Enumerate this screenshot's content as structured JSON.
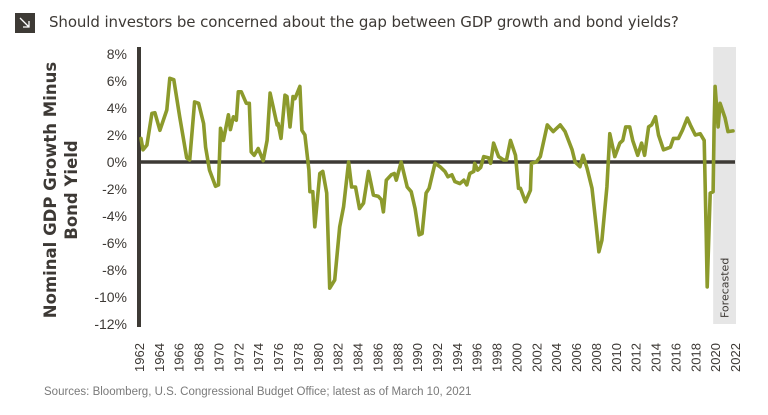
{
  "header": {
    "title": "Should investors be concerned about the gap between GDP growth and bond yields?",
    "icon": "arrow-down-right-icon"
  },
  "source": "Sources: Bloomberg, U.S. Congressional Budget Office; latest as of March 10, 2021",
  "chart_data": {
    "type": "line",
    "title": "Should investors be concerned about the gap between GDP growth and bond yields?",
    "ylabel": [
      "Nominal GDP Growth Minus",
      "Bond Yield"
    ],
    "xlabel": "",
    "ylim": [
      -12,
      8
    ],
    "xlim": [
      1962,
      2022
    ],
    "yticks": [
      "8%",
      "6%",
      "4%",
      "2%",
      "0%",
      "-2%",
      "-4%",
      "-6%",
      "-8%",
      "-10%",
      "-12%"
    ],
    "ytick_values": [
      8,
      6,
      4,
      2,
      0,
      -2,
      -4,
      -6,
      -8,
      -10,
      -12
    ],
    "xticks": [
      "1962",
      "1964",
      "1966",
      "1968",
      "1970",
      "1972",
      "1974",
      "1976",
      "1978",
      "1980",
      "1982",
      "1984",
      "1986",
      "1988",
      "1990",
      "1992",
      "1994",
      "1996",
      "1998",
      "2000",
      "2002",
      "2004",
      "2006",
      "2008",
      "2010",
      "2012",
      "2014",
      "2016",
      "2018",
      "2020",
      "2022"
    ],
    "grid": false,
    "zero_line": true,
    "shaded_region": {
      "label": "Forecasted",
      "from": 2019.8,
      "to": 2022.1,
      "color": "#e6e6e6"
    },
    "colors": {
      "line": "#8c9a2c",
      "axis": "#3d3a35"
    },
    "series": [
      {
        "x": [
          1962.2,
          1962.4,
          1962.8,
          1963.3,
          1963.6,
          1964.1,
          1964.8,
          1965.1,
          1965.5,
          1966.1,
          1966.8,
          1967.1,
          1967.6,
          1968.0,
          1968.5,
          1968.7,
          1969.1,
          1969.7,
          1970.0,
          1970.2,
          1970.5,
          1971.0,
          1971.2,
          1971.5,
          1971.8,
          1972.0,
          1972.3,
          1972.8,
          1973.1,
          1973.3,
          1973.6,
          1974.0,
          1974.5,
          1974.9,
          1975.2,
          1975.5,
          1975.9,
          1976.0,
          1976.3,
          1976.7,
          1976.9,
          1977.2,
          1977.5,
          1977.7,
          1978.2,
          1978.4,
          1978.7,
          1979.1,
          1979.2,
          1979.5,
          1979.7,
          1980.2,
          1980.5,
          1980.9,
          1981.2,
          1981.7,
          1982.2,
          1982.6,
          1983.1,
          1983.4,
          1983.8,
          1984.2,
          1984.6,
          1985.1,
          1985.6,
          1986.1,
          1986.4,
          1986.6,
          1986.9,
          1987.4,
          1987.7,
          1987.9,
          1988.4,
          1989.0,
          1989.4,
          1989.8,
          1990.2,
          1990.5,
          1990.9,
          1991.2,
          1991.8,
          1992.3,
          1992.8,
          1993.1,
          1993.5,
          1993.8,
          1994.3,
          1994.7,
          1995.0,
          1995.3,
          1995.7,
          1995.8,
          1996.1,
          1996.4,
          1996.7,
          1997.2,
          1997.4,
          1997.7,
          1998.2,
          1998.7,
          1999.0,
          1999.4,
          1999.9,
          2000.2,
          2000.4,
          2000.9,
          2001.4,
          2001.5,
          2002.0,
          2002.4,
          2003.1,
          2003.7,
          2004.4,
          2004.9,
          2005.6,
          2005.9,
          2006.4,
          2006.7,
          2007.1,
          2007.6,
          2008.0,
          2008.3,
          2008.6,
          2009.1,
          2009.4,
          2009.9,
          2010.4,
          2010.7,
          2011.0,
          2011.4,
          2011.7,
          2012.2,
          2012.6,
          2012.9,
          2013.3,
          2013.6,
          2014.0,
          2014.3,
          2014.8,
          2015.5,
          2015.8,
          2016.3,
          2016.7,
          2017.2,
          2017.5,
          2018.0,
          2018.5,
          2018.9,
          2019.1,
          2019.2,
          2019.5,
          2019.8,
          2019.9,
          2020.0,
          2020.3,
          2020.5,
          2021.0,
          2021.3,
          2021.8
        ],
        "y": [
          1.75,
          0.9,
          1.25,
          3.6,
          3.65,
          2.35,
          3.85,
          6.2,
          6.1,
          3.35,
          0.3,
          0.15,
          4.45,
          4.35,
          2.85,
          1.1,
          -0.6,
          -1.8,
          -1.7,
          2.5,
          1.6,
          3.5,
          2.4,
          3.35,
          3.1,
          5.2,
          5.2,
          4.35,
          4.35,
          0.75,
          0.5,
          1.0,
          0.1,
          1.6,
          5.1,
          4.1,
          2.75,
          2.85,
          1.75,
          4.95,
          4.85,
          2.6,
          4.85,
          4.7,
          5.6,
          2.35,
          2.0,
          -0.6,
          -2.2,
          -2.2,
          -4.8,
          -0.85,
          -0.7,
          -2.3,
          -9.35,
          -8.75,
          -4.8,
          -3.3,
          0.0,
          -1.85,
          -1.85,
          -3.45,
          -3.05,
          -0.7,
          -2.45,
          -2.55,
          -2.8,
          -3.7,
          -1.35,
          -0.95,
          -0.85,
          -1.35,
          0.0,
          -1.85,
          -2.2,
          -3.45,
          -5.4,
          -5.3,
          -2.3,
          -1.95,
          -0.1,
          -0.35,
          -0.7,
          -1.1,
          -0.95,
          -1.45,
          -1.6,
          -1.35,
          -1.7,
          -0.85,
          -0.7,
          -0.1,
          -0.6,
          -0.4,
          0.4,
          0.3,
          -0.1,
          1.4,
          0.4,
          0.15,
          0.15,
          1.6,
          0.5,
          -1.95,
          -1.95,
          -2.95,
          -2.1,
          -0.1,
          0.0,
          0.4,
          2.75,
          2.25,
          2.75,
          2.25,
          0.9,
          0.0,
          -0.35,
          0.5,
          -0.45,
          -1.95,
          -4.55,
          -6.65,
          -5.8,
          -1.85,
          2.1,
          0.4,
          1.4,
          1.6,
          2.6,
          2.6,
          1.6,
          0.5,
          1.4,
          0.5,
          2.6,
          2.75,
          3.35,
          2.0,
          0.9,
          1.1,
          1.75,
          1.75,
          2.35,
          3.25,
          2.75,
          2.0,
          2.1,
          1.6,
          -5.3,
          -9.25,
          -2.3,
          -2.2,
          2.6,
          5.6,
          2.6,
          4.35,
          3.25,
          2.25,
          2.3
        ]
      }
    ]
  }
}
